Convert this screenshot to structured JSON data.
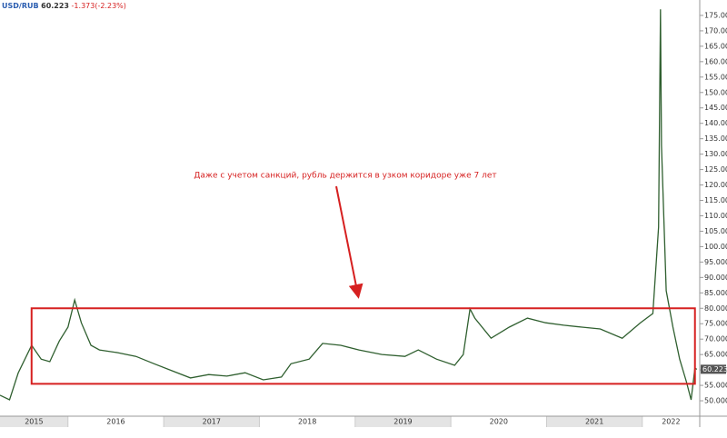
{
  "chart_data": {
    "type": "line",
    "symbol": "USD/RUB",
    "price": 60.223,
    "change": "-1.373(-2.23%)",
    "annotation": "Даже с учетом санкций, рубль держится в узком коридоре уже 7 лет",
    "x": [
      2015.29,
      2015.39,
      2015.48,
      2015.62,
      2015.72,
      2015.81,
      2015.91,
      2016.0,
      2016.07,
      2016.14,
      2016.24,
      2016.33,
      2016.52,
      2016.71,
      2016.9,
      2017.09,
      2017.28,
      2017.47,
      2017.66,
      2017.85,
      2018.04,
      2018.23,
      2018.33,
      2018.52,
      2018.66,
      2018.85,
      2019.04,
      2019.28,
      2019.52,
      2019.66,
      2019.85,
      2020.04,
      2020.13,
      2020.2,
      2020.25,
      2020.42,
      2020.61,
      2020.8,
      2020.99,
      2021.18,
      2021.37,
      2021.56,
      2021.79,
      2021.98,
      2022.11,
      2022.17,
      2022.19,
      2022.2,
      2022.25,
      2022.32,
      2022.39,
      2022.46,
      2022.51,
      2022.55,
      2022.57
    ],
    "series": [
      {
        "name": "USD/RUB",
        "color": "#2f5f2f",
        "values": [
          51.8,
          50.3,
          59,
          68,
          63.5,
          62.7,
          69.4,
          73.9,
          82.7,
          75.3,
          68,
          66.5,
          65.6,
          64.4,
          62,
          59.7,
          57.4,
          58.5,
          58,
          59.1,
          56.8,
          57.7,
          62,
          63.5,
          68.6,
          68,
          66.5,
          65,
          64.4,
          66.5,
          63.5,
          61.5,
          65,
          79.8,
          76.8,
          70.3,
          73.9,
          76.8,
          75.3,
          74.5,
          73.9,
          73.3,
          70.3,
          75.3,
          78.3,
          106.3,
          177,
          132.8,
          85.7,
          73.9,
          63.5,
          56.2,
          50.3,
          60.6,
          60.223
        ]
      }
    ],
    "corridor": {
      "color": "#d62020",
      "ylim": [
        55.5,
        80
      ],
      "xlim": [
        2015.62,
        2022.55
      ]
    },
    "xlim": [
      2015.29,
      2022.6
    ],
    "xticks": [
      {
        "value": 2015,
        "label": "2015"
      },
      {
        "value": 2016,
        "label": "2016"
      },
      {
        "value": 2017,
        "label": "2017"
      },
      {
        "value": 2018,
        "label": "2018"
      },
      {
        "value": 2019,
        "label": "2019"
      },
      {
        "value": 2020,
        "label": "2020"
      },
      {
        "value": 2021,
        "label": "2021"
      },
      {
        "value": 2022,
        "label": "2022"
      }
    ],
    "ylim": [
      45,
      180
    ],
    "yticks": [
      {
        "value": 50,
        "label": "50.000"
      },
      {
        "value": 55,
        "label": "55.000"
      },
      {
        "value": 60,
        "label": "60.000"
      },
      {
        "value": 65,
        "label": "65.000"
      },
      {
        "value": 70,
        "label": "70.000"
      },
      {
        "value": 75,
        "label": "75.000"
      },
      {
        "value": 80,
        "label": "80.000"
      },
      {
        "value": 85,
        "label": "85.000"
      },
      {
        "value": 90,
        "label": "90.000"
      },
      {
        "value": 95,
        "label": "95.000"
      },
      {
        "value": 100,
        "label": "100.000"
      },
      {
        "value": 105,
        "label": "105.000"
      },
      {
        "value": 110,
        "label": "110.000"
      },
      {
        "value": 115,
        "label": "115.000"
      },
      {
        "value": 120,
        "label": "120.000"
      },
      {
        "value": 125,
        "label": "125.000"
      },
      {
        "value": 130,
        "label": "130.000"
      },
      {
        "value": 135,
        "label": "135.000"
      },
      {
        "value": 140,
        "label": "140.000"
      },
      {
        "value": 145,
        "label": "145.000"
      },
      {
        "value": 150,
        "label": "150.000"
      },
      {
        "value": 155,
        "label": "155.000"
      },
      {
        "value": 160,
        "label": "160.000"
      },
      {
        "value": 165,
        "label": "165.000"
      },
      {
        "value": 170,
        "label": "170.000"
      },
      {
        "value": 175,
        "label": "175.000"
      }
    ]
  }
}
